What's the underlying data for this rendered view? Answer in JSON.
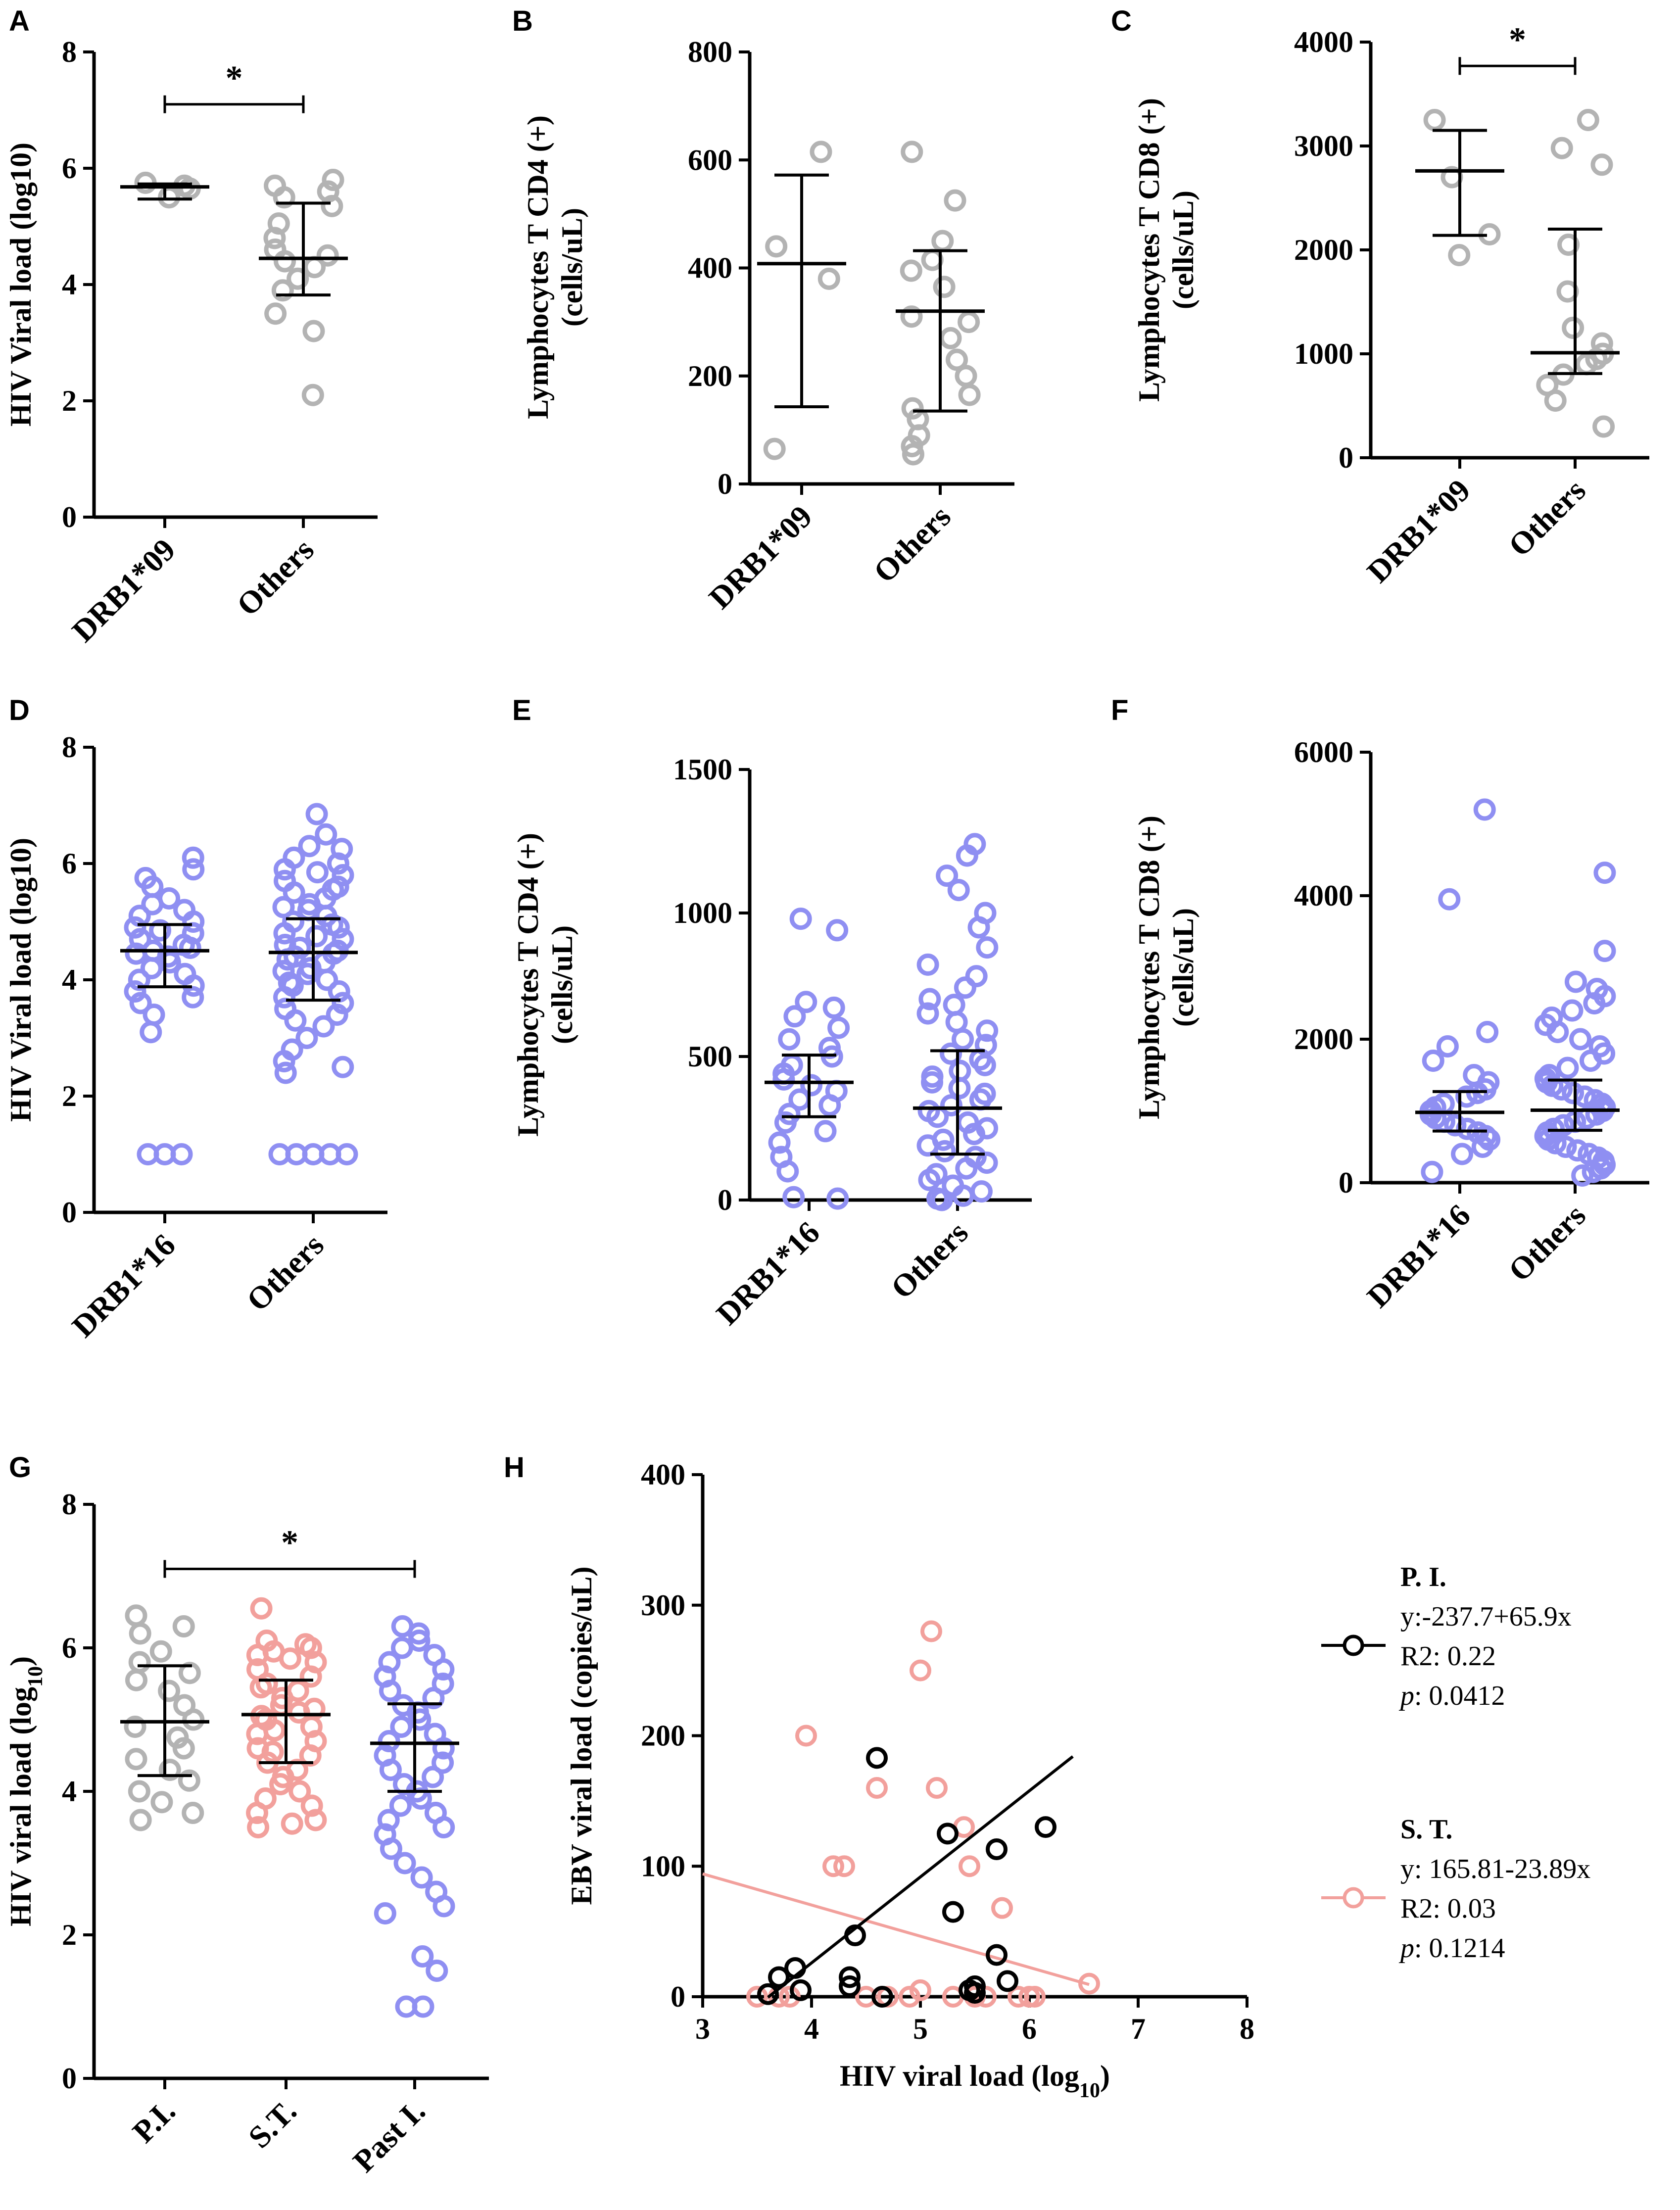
{
  "figure": {
    "colors": {
      "gray": "#b3b3b3",
      "blue": "#8f8ff2",
      "pink": "#f2a09c",
      "black": "#000000"
    }
  },
  "chart_data": [
    {
      "panel": "A",
      "type": "scatter",
      "ylabel": "HIV Viral load (log10)",
      "ylim": [
        0,
        8
      ],
      "yticks": [
        0,
        2,
        4,
        6,
        8
      ],
      "categories": [
        "DRB1*09",
        "Others"
      ],
      "color": "gray",
      "points": [
        [
          5.75,
          5.65,
          5.7,
          5.5
        ],
        [
          5.8,
          5.7,
          5.6,
          5.5,
          5.35,
          5.05,
          4.8,
          4.6,
          4.5,
          4.4,
          4.3,
          4.1,
          3.9,
          3.5,
          3.2,
          2.1
        ]
      ],
      "median": [
        5.68,
        4.45
      ],
      "lower": [
        5.47,
        3.82
      ],
      "upper": [
        5.73,
        5.4
      ],
      "significance": {
        "label": "*",
        "from": 0,
        "to": 1,
        "y": 7.1
      }
    },
    {
      "panel": "B",
      "type": "scatter",
      "ylabel": "Lymphocytes T CD4 (+) (cells/uL)",
      "ylim": [
        0,
        800
      ],
      "yticks": [
        0,
        200,
        400,
        600,
        800
      ],
      "categories": [
        "DRB1*09",
        "Others"
      ],
      "color": "gray",
      "points": [
        [
          615,
          440,
          380,
          65
        ],
        [
          615,
          525,
          450,
          415,
          395,
          365,
          310,
          300,
          270,
          230,
          200,
          165,
          140,
          120,
          90,
          70,
          55
        ]
      ],
      "median": [
        408,
        320
      ],
      "lower": [
        143,
        135
      ],
      "upper": [
        572,
        432
      ]
    },
    {
      "panel": "C",
      "type": "scatter",
      "ylabel": "Lymphocytes T CD8 (+) (cells/uL)",
      "ylim": [
        0,
        4000
      ],
      "yticks": [
        0,
        1000,
        2000,
        3000,
        4000
      ],
      "categories": [
        "DRB1*09",
        "Others"
      ],
      "color": "gray",
      "points": [
        [
          3250,
          2700,
          2150,
          1950
        ],
        [
          3250,
          2980,
          2820,
          2050,
          1600,
          1250,
          1100,
          1000,
          950,
          900,
          800,
          700,
          550,
          300
        ]
      ],
      "median": [
        2760,
        1010
      ],
      "lower": [
        2140,
        810
      ],
      "upper": [
        3150,
        2200
      ],
      "significance": {
        "label": "*",
        "from": 0,
        "to": 1,
        "y": 3770
      }
    },
    {
      "panel": "D",
      "type": "scatter",
      "ylabel": "HIV Viral load (log10)",
      "ylim": [
        0,
        8
      ],
      "yticks": [
        0,
        2,
        4,
        6,
        8
      ],
      "categories": [
        "DRB1*16",
        "Others"
      ],
      "color": "blue",
      "points": [
        [
          6.1,
          5.9,
          5.75,
          5.6,
          5.4,
          5.3,
          5.2,
          5.1,
          5.0,
          4.9,
          4.85,
          4.8,
          4.7,
          4.6,
          4.55,
          4.5,
          4.45,
          4.4,
          4.3,
          4.2,
          4.1,
          4.0,
          3.9,
          3.8,
          3.7,
          3.6,
          3.4,
          3.1,
          1.0,
          1.0,
          1.0
        ],
        [
          6.85,
          6.5,
          6.3,
          6.25,
          6.1,
          6.0,
          5.9,
          5.85,
          5.8,
          5.7,
          5.6,
          5.55,
          5.5,
          5.4,
          5.3,
          5.25,
          5.2,
          5.1,
          5.0,
          4.95,
          4.9,
          4.8,
          4.75,
          4.7,
          4.6,
          4.55,
          4.5,
          4.45,
          4.4,
          4.35,
          4.3,
          4.2,
          4.15,
          4.1,
          4.0,
          3.95,
          3.9,
          3.8,
          3.7,
          3.6,
          3.5,
          3.4,
          3.3,
          3.2,
          3.0,
          2.8,
          2.6,
          2.5,
          2.4,
          1.0,
          1.0,
          1.0,
          1.0,
          1.0
        ]
      ],
      "median": [
        4.5,
        4.47
      ],
      "lower": [
        3.88,
        3.65
      ],
      "upper": [
        4.95,
        5.05
      ]
    },
    {
      "panel": "E",
      "type": "scatter",
      "ylabel": "Lymphocytes T CD4 (+) (cells/uL)",
      "ylim": [
        0,
        1500
      ],
      "yticks": [
        0,
        500,
        1000,
        1500
      ],
      "categories": [
        "DRB1*16",
        "Others"
      ],
      "color": "blue",
      "points": [
        [
          980,
          940,
          690,
          670,
          640,
          600,
          560,
          530,
          500,
          470,
          440,
          420,
          400,
          380,
          350,
          330,
          300,
          270,
          240,
          200,
          150,
          100,
          10,
          5
        ],
        [
          1240,
          1200,
          1130,
          1080,
          1000,
          950,
          880,
          820,
          780,
          740,
          700,
          680,
          650,
          620,
          590,
          560,
          540,
          510,
          490,
          470,
          450,
          430,
          410,
          390,
          370,
          350,
          330,
          310,
          290,
          270,
          250,
          230,
          210,
          190,
          170,
          150,
          130,
          110,
          90,
          70,
          50,
          30,
          15,
          5,
          0
        ]
      ],
      "median": [
        410,
        320
      ],
      "lower": [
        290,
        160
      ],
      "upper": [
        505,
        520
      ]
    },
    {
      "panel": "F",
      "type": "scatter",
      "ylabel": "Lymphocytes T CD8 (+) (cells/uL)",
      "ylim": [
        0,
        6000
      ],
      "yticks": [
        0,
        2000,
        4000,
        6000
      ],
      "categories": [
        "DRB1*16",
        "Others"
      ],
      "color": "blue",
      "points": [
        [
          5200,
          3950,
          2100,
          1900,
          1700,
          1500,
          1400,
          1300,
          1250,
          1200,
          1100,
          1050,
          1000,
          950,
          900,
          850,
          800,
          750,
          700,
          650,
          600,
          500,
          400,
          150
        ],
        [
          4320,
          3230,
          2800,
          2700,
          2600,
          2500,
          2400,
          2300,
          2200,
          2100,
          2000,
          1900,
          1800,
          1700,
          1600,
          1500,
          1450,
          1400,
          1350,
          1300,
          1250,
          1200,
          1150,
          1100,
          1050,
          1000,
          950,
          900,
          850,
          800,
          750,
          700,
          650,
          600,
          550,
          500,
          450,
          400,
          350,
          300,
          250,
          200,
          150,
          100
        ]
      ],
      "median": [
        980,
        1010
      ],
      "lower": [
        720,
        730
      ],
      "upper": [
        1270,
        1430
      ]
    },
    {
      "panel": "G",
      "type": "scatter",
      "ylabel": "HIV viral load (log10)",
      "ylim": [
        0,
        8
      ],
      "yticks": [
        0,
        2,
        4,
        6,
        8
      ],
      "categories": [
        "P.I.",
        "S.T.",
        "Past I."
      ],
      "colors": [
        "gray",
        "pink",
        "blue"
      ],
      "points": [
        [
          6.45,
          6.3,
          6.2,
          5.95,
          5.8,
          5.65,
          5.55,
          5.4,
          5.2,
          5.0,
          4.9,
          4.75,
          4.6,
          4.45,
          4.3,
          4.15,
          4.0,
          3.85,
          3.7,
          3.6
        ],
        [
          6.55,
          6.1,
          6.05,
          6.0,
          5.95,
          5.9,
          5.85,
          5.8,
          5.7,
          5.6,
          5.5,
          5.45,
          5.4,
          5.3,
          5.2,
          5.15,
          5.1,
          5.05,
          5.0,
          4.9,
          4.85,
          4.8,
          4.7,
          4.6,
          4.55,
          4.5,
          4.4,
          4.3,
          4.2,
          4.1,
          4.0,
          3.9,
          3.8,
          3.7,
          3.6,
          3.55,
          3.5
        ],
        [
          6.3,
          6.2,
          6.1,
          6.0,
          5.9,
          5.8,
          5.7,
          5.6,
          5.5,
          5.4,
          5.3,
          5.2,
          5.1,
          5.0,
          4.9,
          4.8,
          4.7,
          4.6,
          4.5,
          4.4,
          4.3,
          4.2,
          4.1,
          4.0,
          3.9,
          3.8,
          3.7,
          3.6,
          3.5,
          3.4,
          3.2,
          3.0,
          2.8,
          2.6,
          2.4,
          2.3,
          1.7,
          1.5,
          1.0,
          1.0
        ]
      ],
      "median": [
        4.97,
        5.07,
        4.67
      ],
      "lower": [
        4.22,
        4.4,
        4.0
      ],
      "upper": [
        5.75,
        5.55,
        5.22
      ],
      "significance": {
        "label": "*",
        "from": 0,
        "to": 2,
        "y": 7.1
      }
    },
    {
      "panel": "H",
      "type": "scatter",
      "xlabel": "HIV viral load (log10)",
      "ylabel": "EBV viral load (copies/uL)",
      "xlim": [
        3,
        8
      ],
      "ylim": [
        0,
        400
      ],
      "xticks": [
        3,
        4,
        5,
        6,
        7,
        8
      ],
      "yticks": [
        0,
        100,
        200,
        300,
        400
      ],
      "series": [
        {
          "name": "P. I.",
          "color": "black",
          "equation": "y:-237.7+65.9x",
          "r2": "R2: 0.22",
          "p_label": "p",
          "p_value": ": 0.0412",
          "fit": {
            "intercept": -237.7,
            "slope": 65.9,
            "x_range": [
              3.6,
              6.4
            ]
          },
          "points": [
            [
              3.6,
              2
            ],
            [
              3.7,
              15
            ],
            [
              3.85,
              22
            ],
            [
              3.9,
              5
            ],
            [
              4.35,
              15
            ],
            [
              4.35,
              8
            ],
            [
              4.4,
              47
            ],
            [
              4.6,
              183
            ],
            [
              4.65,
              0
            ],
            [
              5.25,
              125
            ],
            [
              5.3,
              65
            ],
            [
              5.45,
              5
            ],
            [
              5.5,
              8
            ],
            [
              5.5,
              3
            ],
            [
              5.7,
              113
            ],
            [
              5.7,
              32
            ],
            [
              5.8,
              12
            ],
            [
              6.15,
              130
            ]
          ]
        },
        {
          "name": "S. T.",
          "color": "pink",
          "equation": "y: 165.81-23.89x",
          "r2": "R2: 0.03",
          "p_label": "p",
          "p_value": ": 0.1214",
          "fit": {
            "intercept": 165.81,
            "slope": -23.89,
            "x_range": [
              3,
              6.55
            ]
          },
          "points": [
            [
              3.5,
              0
            ],
            [
              3.7,
              0
            ],
            [
              3.8,
              0
            ],
            [
              3.95,
              200
            ],
            [
              4.2,
              100
            ],
            [
              4.3,
              100
            ],
            [
              4.5,
              0
            ],
            [
              4.7,
              0
            ],
            [
              4.6,
              160
            ],
            [
              4.9,
              0
            ],
            [
              5.0,
              250
            ],
            [
              5.0,
              5
            ],
            [
              5.1,
              280
            ],
            [
              5.15,
              160
            ],
            [
              5.3,
              0
            ],
            [
              5.4,
              130
            ],
            [
              5.45,
              100
            ],
            [
              5.5,
              0
            ],
            [
              5.6,
              0
            ],
            [
              5.75,
              68
            ],
            [
              5.9,
              0
            ],
            [
              6.0,
              0
            ],
            [
              6.05,
              0
            ],
            [
              6.55,
              10
            ]
          ]
        }
      ]
    }
  ]
}
